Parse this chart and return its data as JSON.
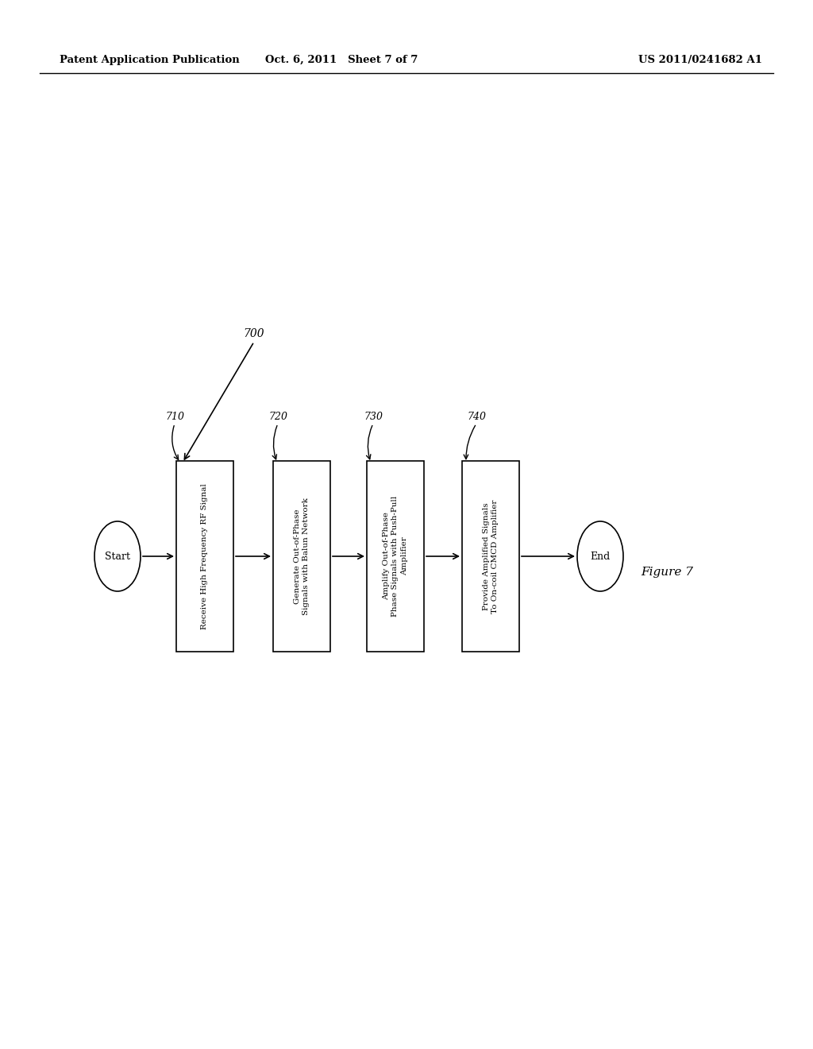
{
  "header_left": "Patent Application Publication",
  "header_center": "Oct. 6, 2011   Sheet 7 of 7",
  "header_right": "US 2011/0241682 A1",
  "figure_label": "Figure 7",
  "background_color": "#ffffff",
  "diagram": {
    "start_label": "Start",
    "end_label": "End",
    "boxes": [
      {
        "id": "710",
        "label": "Receive High Frequency RF Signal"
      },
      {
        "id": "720",
        "label": "Generate Out-of-Phase\nSignals with Balun Network"
      },
      {
        "id": "730",
        "label": "Amplify Out-of-Phase\nPhase Signals with Push-Pull\nAmplifier"
      },
      {
        "id": "740",
        "label": "Provide Amplified Signals\nTo On-coil CMCD Amplifier"
      }
    ],
    "label_700": "700",
    "label_710": "710",
    "label_720": "720",
    "label_730": "730",
    "label_740": "740"
  }
}
